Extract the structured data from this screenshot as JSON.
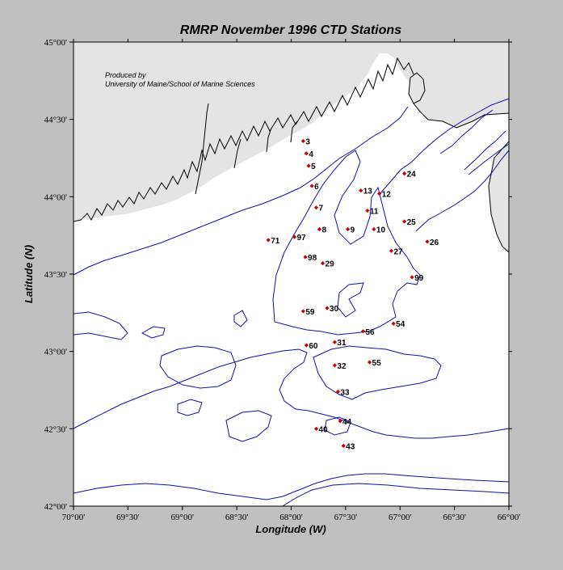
{
  "title": "RMRP  November 1996  CTD Stations",
  "credit": {
    "line1": "Produced by",
    "line2": "University of Maine/School of Marine Sciences"
  },
  "axes": {
    "xlabel": "Longitude (W)",
    "ylabel": "Latitude (N)",
    "xrange": [
      -70.0,
      -66.0
    ],
    "yrange": [
      42.0,
      45.0
    ],
    "xticks": [
      {
        "value": -70.0,
        "label": "70°00'"
      },
      {
        "value": -69.5,
        "label": "69°30'"
      },
      {
        "value": -69.0,
        "label": "69°00'"
      },
      {
        "value": -68.5,
        "label": "68°30'"
      },
      {
        "value": -68.0,
        "label": "68°00'"
      },
      {
        "value": -67.5,
        "label": "67°30'"
      },
      {
        "value": -67.0,
        "label": "67°00'"
      },
      {
        "value": -66.5,
        "label": "66°30'"
      },
      {
        "value": -66.0,
        "label": "66°00'"
      }
    ],
    "yticks": [
      {
        "value": 42.0,
        "label": "42°00'"
      },
      {
        "value": 42.5,
        "label": "42°30'"
      },
      {
        "value": 43.0,
        "label": "43°00'"
      },
      {
        "value": 43.5,
        "label": "43°30'"
      },
      {
        "value": 44.0,
        "label": "44°00'"
      },
      {
        "value": 44.5,
        "label": "44°30'"
      },
      {
        "value": 45.0,
        "label": "45°00'"
      }
    ]
  },
  "colors": {
    "background": "#c0c0c0",
    "land": "#e4e4e4",
    "water": "#ffffff",
    "contour": "#1010a8",
    "station": "#cc0000"
  },
  "stations": [
    {
      "id": "3",
      "lon": -67.89,
      "lat": 44.36
    },
    {
      "id": "4",
      "lon": -67.86,
      "lat": 44.28
    },
    {
      "id": "5",
      "lon": -67.84,
      "lat": 44.2
    },
    {
      "id": "6",
      "lon": -67.81,
      "lat": 44.07
    },
    {
      "id": "7",
      "lon": -67.77,
      "lat": 43.93
    },
    {
      "id": "8",
      "lon": -67.74,
      "lat": 43.79
    },
    {
      "id": "9",
      "lon": -67.48,
      "lat": 43.79
    },
    {
      "id": "10",
      "lon": -67.24,
      "lat": 43.79
    },
    {
      "id": "11",
      "lon": -67.3,
      "lat": 43.91
    },
    {
      "id": "12",
      "lon": -67.19,
      "lat": 44.02
    },
    {
      "id": "13",
      "lon": -67.36,
      "lat": 44.04
    },
    {
      "id": "24",
      "lon": -66.96,
      "lat": 44.15
    },
    {
      "id": "25",
      "lon": -66.96,
      "lat": 43.84
    },
    {
      "id": "26",
      "lon": -66.75,
      "lat": 43.71
    },
    {
      "id": "27",
      "lon": -67.08,
      "lat": 43.65
    },
    {
      "id": "29",
      "lon": -67.71,
      "lat": 43.57
    },
    {
      "id": "30",
      "lon": -67.67,
      "lat": 43.28
    },
    {
      "id": "31",
      "lon": -67.6,
      "lat": 43.06
    },
    {
      "id": "32",
      "lon": -67.6,
      "lat": 42.91
    },
    {
      "id": "33",
      "lon": -67.57,
      "lat": 42.74
    },
    {
      "id": "40",
      "lon": -67.77,
      "lat": 42.5
    },
    {
      "id": "43",
      "lon": -67.52,
      "lat": 42.39
    },
    {
      "id": "44",
      "lon": -67.55,
      "lat": 42.55
    },
    {
      "id": "54",
      "lon": -67.06,
      "lat": 43.18
    },
    {
      "id": "55",
      "lon": -67.28,
      "lat": 42.93
    },
    {
      "id": "56",
      "lon": -67.34,
      "lat": 43.13
    },
    {
      "id": "59",
      "lon": -67.89,
      "lat": 43.26
    },
    {
      "id": "60",
      "lon": -67.86,
      "lat": 43.04
    },
    {
      "id": "71",
      "lon": -68.21,
      "lat": 43.72
    },
    {
      "id": "97",
      "lon": -67.97,
      "lat": 43.74
    },
    {
      "id": "98",
      "lon": -67.87,
      "lat": 43.61
    },
    {
      "id": "99",
      "lon": -66.89,
      "lat": 43.48
    }
  ]
}
